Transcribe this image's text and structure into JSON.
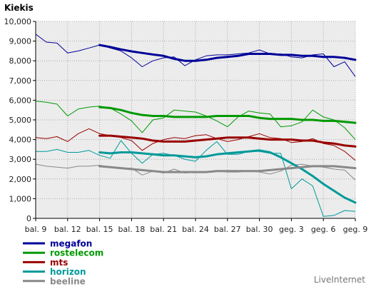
{
  "chart_data": {
    "type": "line",
    "title": "Kiekis",
    "xlabel": "",
    "ylabel": "",
    "ylim": [
      0,
      10000
    ],
    "yticks": [
      "0",
      "1,000",
      "2,000",
      "3,000",
      "4,000",
      "5,000",
      "6,000",
      "7,000",
      "8,000",
      "9,000",
      "10,000"
    ],
    "x_index_range": [
      0,
      30
    ],
    "xticks": [
      {
        "i": 0,
        "label": "bal. 9"
      },
      {
        "i": 3,
        "label": "bal. 12"
      },
      {
        "i": 6,
        "label": "bal. 15"
      },
      {
        "i": 9,
        "label": "bal. 18"
      },
      {
        "i": 12,
        "label": "bal. 21"
      },
      {
        "i": 15,
        "label": "bal. 24"
      },
      {
        "i": 18,
        "label": "bal. 27"
      },
      {
        "i": 21,
        "label": "bal. 30"
      },
      {
        "i": 24,
        "label": "geg. 3"
      },
      {
        "i": 27,
        "label": "geg. 6"
      },
      {
        "i": 30,
        "label": "geg. 9"
      }
    ],
    "grid": true,
    "legend": "bottom-left",
    "series": [
      {
        "name": "megafon",
        "color": "#000099",
        "daily": [
          9350,
          8950,
          8900,
          8400,
          8500,
          8650,
          8800,
          8650,
          8500,
          8150,
          7700,
          8000,
          8150,
          8200,
          7750,
          8050,
          8250,
          8300,
          8300,
          8350,
          8400,
          8550,
          8350,
          8350,
          8200,
          8150,
          8300,
          8350,
          7700,
          7950,
          7200
        ],
        "trend_start": 6,
        "trend": [
          8800,
          8700,
          8580,
          8480,
          8400,
          8320,
          8250,
          8100,
          8000,
          8000,
          8050,
          8150,
          8200,
          8250,
          8350,
          8350,
          8350,
          8300,
          8300,
          8250,
          8250,
          8200,
          8200,
          8150,
          8050
        ]
      },
      {
        "name": "rostelecom",
        "color": "#009900",
        "daily": [
          5950,
          5900,
          5800,
          5200,
          5550,
          5650,
          5700,
          5600,
          5300,
          4950,
          4350,
          5000,
          5100,
          5500,
          5450,
          5400,
          5200,
          4950,
          4650,
          5150,
          5450,
          5350,
          5300,
          4650,
          4700,
          4900,
          5500,
          5150,
          5000,
          4600,
          4000
        ],
        "trend_start": 6,
        "trend": [
          5650,
          5600,
          5500,
          5350,
          5250,
          5200,
          5200,
          5150,
          5150,
          5150,
          5150,
          5200,
          5200,
          5200,
          5200,
          5100,
          5050,
          5050,
          5050,
          5000,
          5000,
          4950,
          4950,
          4900,
          4850
        ]
      },
      {
        "name": "mts",
        "color": "#990000",
        "daily": [
          4100,
          4050,
          4150,
          3900,
          4300,
          4550,
          4300,
          4200,
          4100,
          3950,
          3450,
          3800,
          4000,
          4100,
          4050,
          4200,
          4250,
          4050,
          3900,
          4000,
          4150,
          4300,
          4100,
          4050,
          3850,
          3900,
          4050,
          3800,
          3700,
          3400,
          2950
        ],
        "trend_start": 6,
        "trend": [
          4200,
          4200,
          4150,
          4100,
          4050,
          3950,
          3900,
          3900,
          3900,
          3950,
          4000,
          4050,
          4100,
          4100,
          4100,
          4050,
          4000,
          4000,
          4000,
          3950,
          3950,
          3850,
          3800,
          3700,
          3650
        ]
      },
      {
        "name": "horizon",
        "color": "#009999",
        "daily": [
          3400,
          3400,
          3500,
          3350,
          3350,
          3450,
          3200,
          3050,
          3950,
          3300,
          2800,
          3250,
          3300,
          3200,
          3000,
          2900,
          3450,
          3900,
          3250,
          3250,
          3400,
          3400,
          3300,
          3300,
          1500,
          2000,
          1650,
          100,
          150,
          400,
          350
        ],
        "trend_start": 6,
        "trend": [
          3350,
          3300,
          3350,
          3350,
          3300,
          3250,
          3200,
          3200,
          3150,
          3100,
          3150,
          3250,
          3300,
          3350,
          3400,
          3450,
          3350,
          3100,
          2800,
          2500,
          2150,
          1750,
          1400,
          1050,
          800
        ]
      },
      {
        "name": "beeline",
        "color": "#888888",
        "daily": [
          2750,
          2650,
          2600,
          2550,
          2650,
          2650,
          2700,
          2600,
          2550,
          2550,
          2200,
          2400,
          2300,
          2500,
          2300,
          2350,
          2350,
          2400,
          2350,
          2350,
          2400,
          2350,
          2250,
          2400,
          2700,
          2750,
          2650,
          2600,
          2500,
          2450,
          1950
        ],
        "trend_start": 6,
        "trend": [
          2650,
          2600,
          2550,
          2500,
          2450,
          2400,
          2350,
          2350,
          2350,
          2350,
          2350,
          2400,
          2400,
          2400,
          2400,
          2400,
          2450,
          2500,
          2550,
          2600,
          2650,
          2650,
          2650,
          2600,
          2550
        ]
      }
    ]
  },
  "credit": "LiveInternet"
}
